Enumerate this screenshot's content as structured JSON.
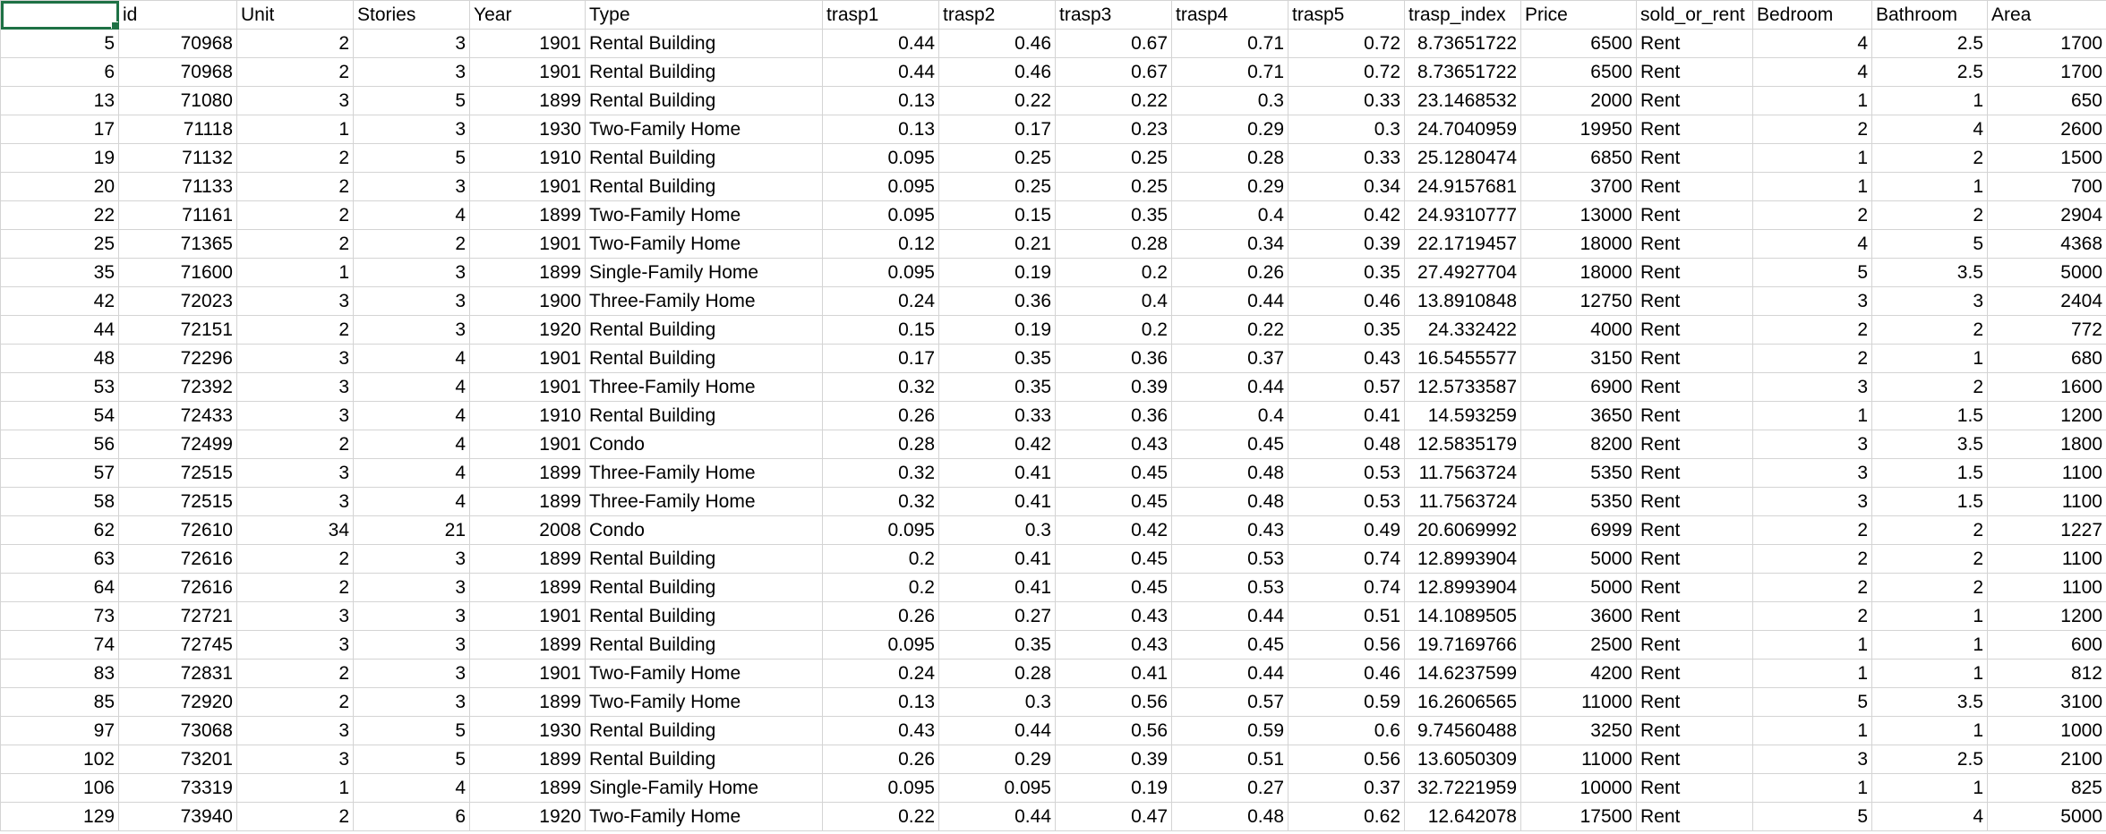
{
  "sheet": {
    "headers": [
      "",
      "id",
      "Unit",
      "Stories",
      "Year",
      "Type",
      "trasp1",
      "trasp2",
      "trasp3",
      "trasp4",
      "trasp5",
      "trasp_index",
      "Price",
      "sold_or_rent",
      "Bedroom",
      "Bathroom",
      "Area"
    ],
    "rows": [
      [
        "5",
        "70968",
        "2",
        "3",
        "1901",
        "Rental Building",
        "0.44",
        "0.46",
        "0.67",
        "0.71",
        "0.72",
        "8.73651722",
        "6500",
        "Rent",
        "4",
        "2.5",
        "1700"
      ],
      [
        "6",
        "70968",
        "2",
        "3",
        "1901",
        "Rental Building",
        "0.44",
        "0.46",
        "0.67",
        "0.71",
        "0.72",
        "8.73651722",
        "6500",
        "Rent",
        "4",
        "2.5",
        "1700"
      ],
      [
        "13",
        "71080",
        "3",
        "5",
        "1899",
        "Rental Building",
        "0.13",
        "0.22",
        "0.22",
        "0.3",
        "0.33",
        "23.1468532",
        "2000",
        "Rent",
        "1",
        "1",
        "650"
      ],
      [
        "17",
        "71118",
        "1",
        "3",
        "1930",
        "Two-Family Home",
        "0.13",
        "0.17",
        "0.23",
        "0.29",
        "0.3",
        "24.7040959",
        "19950",
        "Rent",
        "2",
        "4",
        "2600"
      ],
      [
        "19",
        "71132",
        "2",
        "5",
        "1910",
        "Rental Building",
        "0.095",
        "0.25",
        "0.25",
        "0.28",
        "0.33",
        "25.1280474",
        "6850",
        "Rent",
        "1",
        "2",
        "1500"
      ],
      [
        "20",
        "71133",
        "2",
        "3",
        "1901",
        "Rental Building",
        "0.095",
        "0.25",
        "0.25",
        "0.29",
        "0.34",
        "24.9157681",
        "3700",
        "Rent",
        "1",
        "1",
        "700"
      ],
      [
        "22",
        "71161",
        "2",
        "4",
        "1899",
        "Two-Family Home",
        "0.095",
        "0.15",
        "0.35",
        "0.4",
        "0.42",
        "24.9310777",
        "13000",
        "Rent",
        "2",
        "2",
        "2904"
      ],
      [
        "25",
        "71365",
        "2",
        "2",
        "1901",
        "Two-Family Home",
        "0.12",
        "0.21",
        "0.28",
        "0.34",
        "0.39",
        "22.1719457",
        "18000",
        "Rent",
        "4",
        "5",
        "4368"
      ],
      [
        "35",
        "71600",
        "1",
        "3",
        "1899",
        "Single-Family Home",
        "0.095",
        "0.19",
        "0.2",
        "0.26",
        "0.35",
        "27.4927704",
        "18000",
        "Rent",
        "5",
        "3.5",
        "5000"
      ],
      [
        "42",
        "72023",
        "3",
        "3",
        "1900",
        "Three-Family Home",
        "0.24",
        "0.36",
        "0.4",
        "0.44",
        "0.46",
        "13.8910848",
        "12750",
        "Rent",
        "3",
        "3",
        "2404"
      ],
      [
        "44",
        "72151",
        "2",
        "3",
        "1920",
        "Rental Building",
        "0.15",
        "0.19",
        "0.2",
        "0.22",
        "0.35",
        "24.332422",
        "4000",
        "Rent",
        "2",
        "2",
        "772"
      ],
      [
        "48",
        "72296",
        "3",
        "4",
        "1901",
        "Rental Building",
        "0.17",
        "0.35",
        "0.36",
        "0.37",
        "0.43",
        "16.5455577",
        "3150",
        "Rent",
        "2",
        "1",
        "680"
      ],
      [
        "53",
        "72392",
        "3",
        "4",
        "1901",
        "Three-Family Home",
        "0.32",
        "0.35",
        "0.39",
        "0.44",
        "0.57",
        "12.5733587",
        "6900",
        "Rent",
        "3",
        "2",
        "1600"
      ],
      [
        "54",
        "72433",
        "3",
        "4",
        "1910",
        "Rental Building",
        "0.26",
        "0.33",
        "0.36",
        "0.4",
        "0.41",
        "14.593259",
        "3650",
        "Rent",
        "1",
        "1.5",
        "1200"
      ],
      [
        "56",
        "72499",
        "2",
        "4",
        "1901",
        "Condo",
        "0.28",
        "0.42",
        "0.43",
        "0.45",
        "0.48",
        "12.5835179",
        "8200",
        "Rent",
        "3",
        "3.5",
        "1800"
      ],
      [
        "57",
        "72515",
        "3",
        "4",
        "1899",
        "Three-Family Home",
        "0.32",
        "0.41",
        "0.45",
        "0.48",
        "0.53",
        "11.7563724",
        "5350",
        "Rent",
        "3",
        "1.5",
        "1100"
      ],
      [
        "58",
        "72515",
        "3",
        "4",
        "1899",
        "Three-Family Home",
        "0.32",
        "0.41",
        "0.45",
        "0.48",
        "0.53",
        "11.7563724",
        "5350",
        "Rent",
        "3",
        "1.5",
        "1100"
      ],
      [
        "62",
        "72610",
        "34",
        "21",
        "2008",
        "Condo",
        "0.095",
        "0.3",
        "0.42",
        "0.43",
        "0.49",
        "20.6069992",
        "6999",
        "Rent",
        "2",
        "2",
        "1227"
      ],
      [
        "63",
        "72616",
        "2",
        "3",
        "1899",
        "Rental Building",
        "0.2",
        "0.41",
        "0.45",
        "0.53",
        "0.74",
        "12.8993904",
        "5000",
        "Rent",
        "2",
        "2",
        "1100"
      ],
      [
        "64",
        "72616",
        "2",
        "3",
        "1899",
        "Rental Building",
        "0.2",
        "0.41",
        "0.45",
        "0.53",
        "0.74",
        "12.8993904",
        "5000",
        "Rent",
        "2",
        "2",
        "1100"
      ],
      [
        "73",
        "72721",
        "3",
        "3",
        "1901",
        "Rental Building",
        "0.26",
        "0.27",
        "0.43",
        "0.44",
        "0.51",
        "14.1089505",
        "3600",
        "Rent",
        "2",
        "1",
        "1200"
      ],
      [
        "74",
        "72745",
        "3",
        "3",
        "1899",
        "Rental Building",
        "0.095",
        "0.35",
        "0.43",
        "0.45",
        "0.56",
        "19.7169766",
        "2500",
        "Rent",
        "1",
        "1",
        "600"
      ],
      [
        "83",
        "72831",
        "2",
        "3",
        "1901",
        "Two-Family Home",
        "0.24",
        "0.28",
        "0.41",
        "0.44",
        "0.46",
        "14.6237599",
        "4200",
        "Rent",
        "1",
        "1",
        "812"
      ],
      [
        "85",
        "72920",
        "2",
        "3",
        "1899",
        "Two-Family Home",
        "0.13",
        "0.3",
        "0.56",
        "0.57",
        "0.59",
        "16.2606565",
        "11000",
        "Rent",
        "5",
        "3.5",
        "3100"
      ],
      [
        "97",
        "73068",
        "3",
        "5",
        "1930",
        "Rental Building",
        "0.43",
        "0.44",
        "0.56",
        "0.59",
        "0.6",
        "9.74560488",
        "3250",
        "Rent",
        "1",
        "1",
        "1000"
      ],
      [
        "102",
        "73201",
        "3",
        "5",
        "1899",
        "Rental Building",
        "0.26",
        "0.29",
        "0.39",
        "0.51",
        "0.56",
        "13.6050309",
        "11000",
        "Rent",
        "3",
        "2.5",
        "2100"
      ],
      [
        "106",
        "73319",
        "1",
        "4",
        "1899",
        "Single-Family Home",
        "0.095",
        "0.095",
        "0.19",
        "0.27",
        "0.37",
        "32.7221959",
        "10000",
        "Rent",
        "1",
        "1",
        "825"
      ],
      [
        "129",
        "73940",
        "2",
        "6",
        "1920",
        "Two-Family Home",
        "0.22",
        "0.44",
        "0.47",
        "0.48",
        "0.62",
        "12.642078",
        "17500",
        "Rent",
        "5",
        "4",
        "5000"
      ]
    ],
    "text_columns": [
      5,
      13
    ],
    "selected_cell": "A1",
    "accent_color": "#1e7145"
  }
}
